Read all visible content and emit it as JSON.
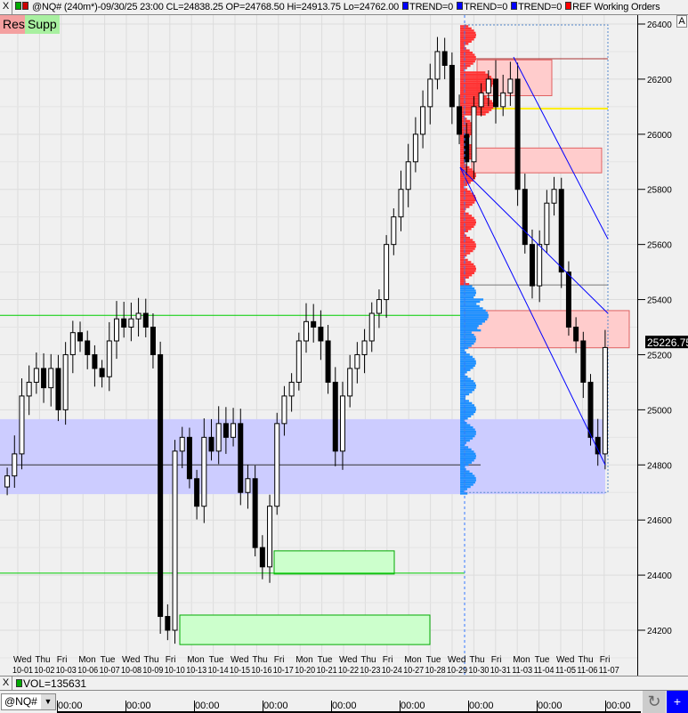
{
  "header": {
    "close_label": "X",
    "title": "@NQ# (240m*)-09/30/25 23:00 CL=24838.25 OP=24768.50 Hi=24913.75 Lo=24762.00",
    "legend": [
      {
        "label": "TREND=0",
        "color": "#0000ff"
      },
      {
        "label": "TREND=0",
        "color": "#0000ff"
      },
      {
        "label": "TREND=0",
        "color": "#0000ff"
      },
      {
        "label": "REF Working Orders",
        "color": "#ff0000"
      }
    ]
  },
  "buttons": {
    "res": "Res",
    "supp": "Supp",
    "auto": "A"
  },
  "chart_data": {
    "type": "candlestick",
    "ylim": [
      24100,
      26430
    ],
    "yticks": [
      26400,
      26200,
      26000,
      25800,
      25600,
      25400,
      25200,
      25000,
      24800,
      24600,
      24400,
      24200
    ],
    "last_price": "25226.75",
    "x_days": [
      "Wed",
      "Thu",
      "Fri",
      "Mon",
      "Tue",
      "Wed",
      "Thu",
      "Fri",
      "Mon",
      "Tue",
      "Wed",
      "Thu",
      "Fri",
      "Mon",
      "Tue",
      "Wed",
      "Thu",
      "Fri",
      "Mon",
      "Tue",
      "Wed",
      "Thu",
      "Fri",
      "Mon",
      "Tue",
      "Wed",
      "Thu",
      "Fri"
    ],
    "x_dates": [
      "10-01",
      "10-02",
      "10-03",
      "10-06",
      "10-07",
      "10-08",
      "10-09",
      "10-10",
      "10-13",
      "10-14",
      "10-15",
      "10-16",
      "10-17",
      "10-20",
      "10-21",
      "10-22",
      "10-23",
      "10-24",
      "10-27",
      "10-28",
      "10-29",
      "10-30",
      "10-31",
      "11-03",
      "11-04",
      "11-05",
      "11-06",
      "11-07"
    ],
    "closes": [
      24760,
      24840,
      25050,
      25100,
      25150,
      25080,
      25150,
      25000,
      25200,
      25280,
      25250,
      25200,
      25150,
      25120,
      25250,
      25330,
      25300,
      25330,
      25350,
      25300,
      25200,
      24250,
      24200,
      24850,
      24900,
      24750,
      24650,
      24900,
      24850,
      24950,
      24900,
      24950,
      24700,
      24750,
      24500,
      24430,
      24650,
      24950,
      25050,
      25100,
      25250,
      25320,
      25300,
      25250,
      25100,
      24850,
      25050,
      25150,
      25200,
      25250,
      25350,
      25400,
      25600,
      25700,
      25800,
      25900,
      26000,
      26100,
      26200,
      26300,
      26250,
      26100,
      26000,
      25900,
      26100,
      26150,
      26200,
      26100,
      26150,
      26200,
      25800,
      25600,
      25450,
      25600,
      25750,
      25800,
      25500,
      25300,
      25250,
      25100,
      24900,
      24840,
      25226
    ],
    "zones": {
      "resistance": [
        {
          "top": 26270,
          "bottom": 26140
        },
        {
          "top": 25950,
          "bottom": 25860
        },
        {
          "top": 25360,
          "bottom": 25225
        }
      ],
      "support": [
        {
          "top": 24488,
          "bottom": 24404
        },
        {
          "top": 24255,
          "bottom": 24148
        }
      ],
      "band": {
        "top": 24966,
        "bottom": 24694
      }
    },
    "levels": {
      "green": [
        25343,
        24407
      ],
      "yellow": 26093,
      "dark_red": 26274,
      "gray": 25453
    },
    "colors": {
      "up": "#000000",
      "down": "#000000",
      "resistance": "#ffcccc",
      "support": "#ccffcc",
      "band": "#ccccff",
      "profile_up": "#ff3333",
      "profile_down": "#1e90ff",
      "trend": "#0000ff"
    }
  },
  "vol_panel": {
    "close_label": "X",
    "label": "VOL=135631",
    "color": "#00aa00"
  },
  "bottom": {
    "symbol": "@NQ#",
    "time_labels": [
      "00:00",
      "00:00",
      "00:00",
      "00:00",
      "00:00",
      "00:00",
      "00:00",
      "00:00",
      "00:00"
    ]
  }
}
